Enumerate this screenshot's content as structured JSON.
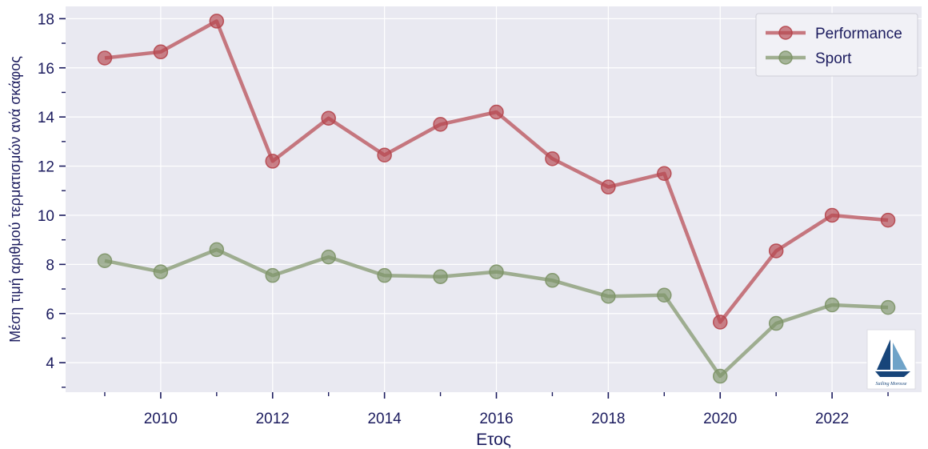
{
  "chart_data": {
    "type": "line",
    "xlabel": "Ετος",
    "ylabel": "Μέση τιμή αριθμού τερματισμών ανά σκάφος",
    "x": [
      2009,
      2010,
      2011,
      2012,
      2013,
      2014,
      2015,
      2016,
      2017,
      2018,
      2019,
      2020,
      2021,
      2022,
      2023
    ],
    "xlim": [
      2008.3,
      2023.6
    ],
    "ylim": [
      2.8,
      18.5
    ],
    "xticks": [
      2010,
      2012,
      2014,
      2016,
      2018,
      2020,
      2022
    ],
    "yticks": [
      4,
      6,
      8,
      10,
      12,
      14,
      16,
      18
    ],
    "grid": true,
    "legend_position": "top-right",
    "series": [
      {
        "name": "Performance",
        "color": "#b5454d",
        "values": [
          16.4,
          16.65,
          17.9,
          12.2,
          13.95,
          12.45,
          13.7,
          14.2,
          12.3,
          11.15,
          11.7,
          5.65,
          8.55,
          10.0,
          9.8
        ]
      },
      {
        "name": "Sport",
        "color": "#7d9367",
        "values": [
          8.15,
          7.7,
          8.6,
          7.55,
          8.3,
          7.55,
          7.5,
          7.7,
          7.35,
          6.7,
          6.75,
          3.45,
          5.6,
          6.35,
          6.25
        ]
      }
    ]
  },
  "logo": {
    "text": "Sailing Morosse",
    "icon": "sailboat-logo-icon"
  }
}
